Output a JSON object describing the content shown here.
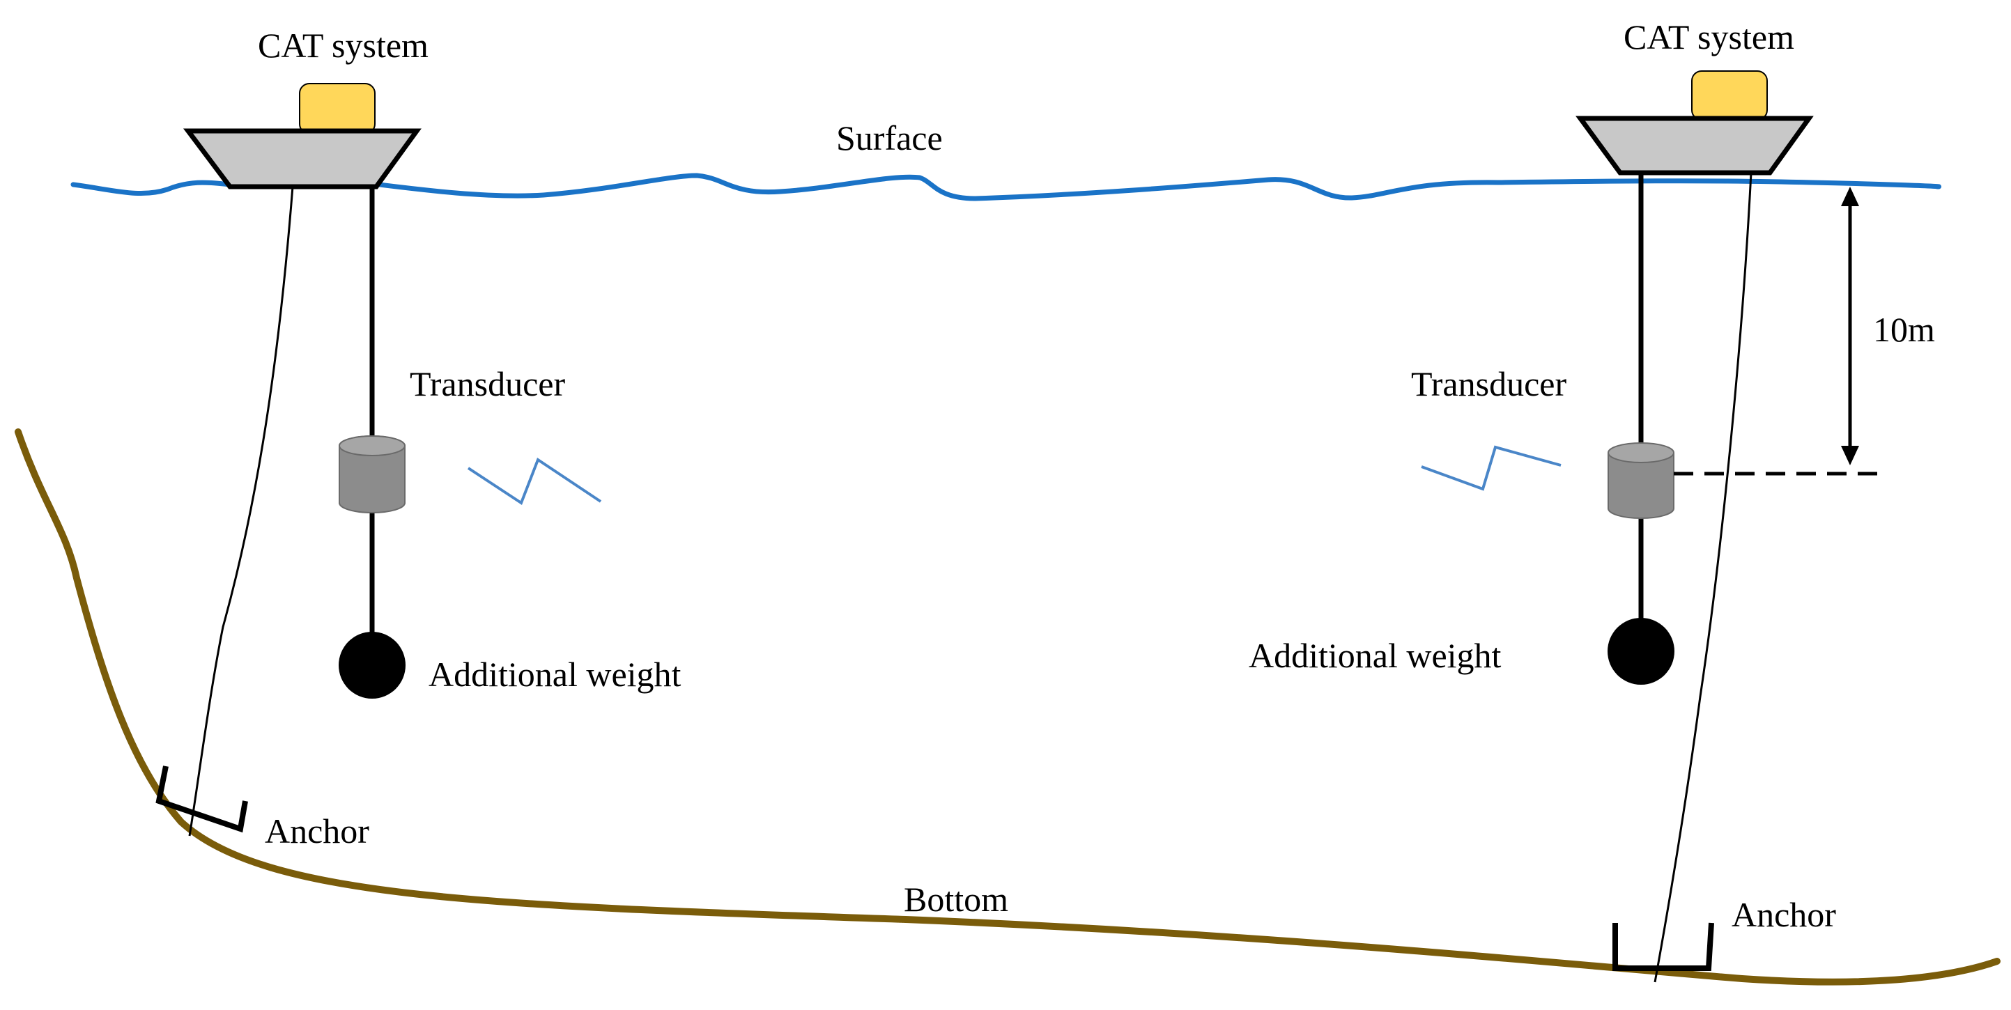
{
  "labels": {
    "cat_left": "CAT system",
    "cat_right": "CAT system",
    "surface": "Surface",
    "transducer_left": "Transducer",
    "transducer_right": "Transducer",
    "weight_left": "Additional weight",
    "weight_right": "Additional weight",
    "anchor_left": "Anchor",
    "anchor_right": "Anchor",
    "bottom": "Bottom",
    "depth": "10m"
  },
  "colors": {
    "water_surface": "#1a73c7",
    "seabed": "#7a5c0a",
    "boat_hull": "#c8c8c8",
    "cabin": "#ffd75a",
    "transducer": "#8c8c8c",
    "signal": "#4a86c8",
    "weight": "#000000"
  }
}
